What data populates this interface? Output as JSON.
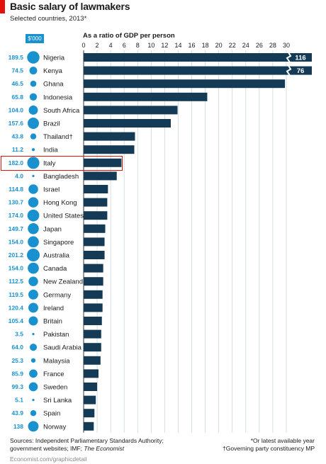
{
  "header": {
    "title": "Basic salary of lawmakers",
    "subtitle": "Selected countries, 2013*"
  },
  "salary_unit": "$'000",
  "ratio_axis_label": "As a ratio of GDP per person",
  "footer": {
    "sources_line1": "Sources: Independent Parliamentary Standards Authority;",
    "sources_line2_prefix": "government websites; IMF; ",
    "sources_line2_italic": "The Economist",
    "note_latest": "*Or latest available year",
    "note_dagger": "†Governing party constituency MP",
    "credit": "Economist.com/graphicdetail"
  },
  "colors": {
    "bar": "#153a55",
    "salary_dot": "#1a91cf",
    "salary_text": "#1a91cf",
    "highlight": "#e3120b",
    "accent": "#e3120b"
  },
  "highlighted_country": "Italy",
  "chart_data": {
    "type": "bar",
    "orientation": "horizontal",
    "x_axis": {
      "min": 0,
      "max": 30,
      "ticks": [
        0,
        2,
        4,
        6,
        8,
        10,
        12,
        14,
        16,
        18,
        20,
        22,
        24,
        26,
        28,
        30
      ],
      "position": "top"
    },
    "grid": true,
    "categories": [
      "Nigeria",
      "Kenya",
      "Ghana",
      "Indonesia",
      "South Africa",
      "Brazil",
      "Thailand†",
      "India",
      "Italy",
      "Bangladesh",
      "Israel",
      "Hong Kong",
      "United States",
      "Japan",
      "Singapore",
      "Australia",
      "Canada",
      "New Zealand",
      "Germany",
      "Ireland",
      "Britain",
      "Pakistan",
      "Saudi Arabia",
      "Malaysia",
      "France",
      "Sweden",
      "Sri Lanka",
      "Spain",
      "Norway"
    ],
    "salary_labels": [
      "189.5",
      "74.5",
      "46.5",
      "65.8",
      "104.0",
      "157.6",
      "43.8",
      "11.2",
      "182.0",
      "4.0",
      "114.8",
      "130.7",
      "174.0",
      "149.7",
      "154.0",
      "201.2",
      "154.0",
      "112.5",
      "119.5",
      "120.4",
      "105.4",
      "3.5",
      "64.0",
      "25.3",
      "85.9",
      "99.3",
      "5.1",
      "43.9",
      "138"
    ],
    "salary": [
      189.5,
      74.5,
      46.5,
      65.8,
      104.0,
      157.6,
      43.8,
      11.2,
      182.0,
      4.0,
      114.8,
      130.7,
      174.0,
      149.7,
      154.0,
      201.2,
      154.0,
      112.5,
      119.5,
      120.4,
      105.4,
      3.5,
      64.0,
      25.3,
      85.9,
      99.3,
      5.1,
      43.9,
      138
    ],
    "ratio": [
      116,
      76,
      29.8,
      18.3,
      13.9,
      12.9,
      7.6,
      7.5,
      5.6,
      4.9,
      3.6,
      3.5,
      3.5,
      3.2,
      3.1,
      3.1,
      2.9,
      2.9,
      2.8,
      2.8,
      2.7,
      2.6,
      2.6,
      2.5,
      2.2,
      2.0,
      1.8,
      1.6,
      1.5
    ],
    "ratio_labels": [
      "116",
      "76",
      "",
      "",
      "",
      "",
      "",
      "",
      "",
      "",
      "",
      "",
      "",
      "",
      "",
      "",
      "",
      "",
      "",
      "",
      "",
      "",
      "",
      "",
      "",
      "",
      "",
      "",
      ""
    ]
  }
}
